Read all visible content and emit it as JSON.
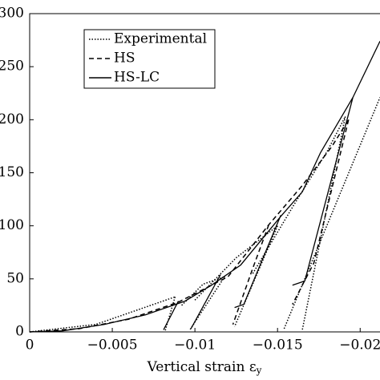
{
  "chart_data": {
    "type": "line",
    "xlabel": "Vertical strain ε",
    "xlabel_sub": "y",
    "xlim": [
      0,
      -0.0212
    ],
    "ylim": [
      0,
      300
    ],
    "xticks": [
      0,
      {
        "value": -0.005,
        "label": "−0.005"
      },
      {
        "value": -0.01,
        "label": "−0.01"
      },
      {
        "value": -0.015,
        "label": "−0.015"
      },
      {
        "value": -0.02,
        "label": "−0.02"
      }
    ],
    "yticks": [
      0,
      50,
      100,
      150,
      200,
      250,
      300
    ],
    "legend": "upper left",
    "series": [
      {
        "name": "Experimental",
        "color": "#000000",
        "style": "dotted",
        "x": [
          0,
          -0.004,
          -0.0088,
          null,
          -0.0088,
          -0.0082,
          null,
          -0.0092,
          -0.0105,
          -0.0118,
          null,
          -0.0118,
          -0.0097,
          null,
          -0.01,
          -0.0125,
          -0.015,
          null,
          -0.015,
          -0.0124,
          null,
          -0.0135,
          -0.016,
          -0.018,
          -0.0191,
          null,
          -0.0191,
          -0.0165,
          null,
          -0.0154,
          -0.0212
        ],
        "values": [
          0,
          7,
          33,
          null,
          33,
          1,
          null,
          25,
          45,
          52,
          null,
          52,
          2,
          null,
          30,
          70,
          100,
          null,
          100,
          5,
          null,
          55,
          120,
          170,
          203,
          null,
          203,
          2,
          null,
          3,
          221
        ]
      },
      {
        "name": "HS",
        "color": "#000000",
        "style": "dashed",
        "x": [
          0,
          -0.003,
          -0.006,
          -0.009,
          -0.012,
          -0.01447,
          -0.0165,
          -0.0183,
          -0.0193,
          null,
          -0.01447,
          -0.0135,
          -0.0123,
          null,
          -0.0193,
          -0.0172,
          -0.0159
        ],
        "values": [
          0,
          3,
          12,
          28,
          52,
          101,
          138,
          175,
          200,
          null,
          101,
          60,
          7,
          null,
          200,
          65,
          26
        ]
      },
      {
        "name": "HS-LC",
        "color": "#000000",
        "style": "solid",
        "x": [
          0,
          -0.002,
          -0.0045,
          -0.007,
          -0.0094,
          -0.011,
          -0.01277,
          -0.0152,
          -0.0165,
          -0.0176,
          -0.01956,
          -0.0212,
          null,
          -0.009,
          -0.0081,
          null,
          -0.01155,
          -0.00976,
          null,
          -0.0152,
          -0.01296,
          -0.0124,
          null,
          -0.01956,
          -0.01665,
          -0.0159
        ],
        "values": [
          0,
          1,
          7,
          16,
          29,
          44,
          63,
          109,
          132,
          169,
          221,
          274,
          null,
          29,
          2,
          null,
          54,
          3,
          null,
          110,
          26,
          23,
          null,
          221,
          48,
          44
        ]
      }
    ]
  }
}
